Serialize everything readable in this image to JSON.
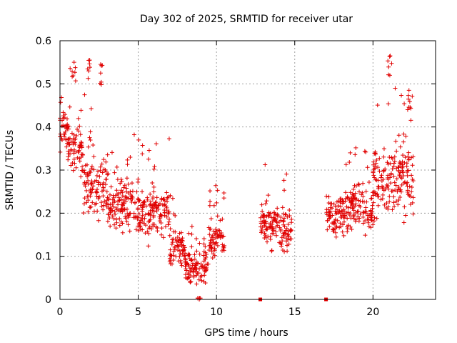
{
  "chart_data": {
    "type": "scatter",
    "title": "Day 302 of 2025, SRMTID for receiver utar",
    "xlabel": "GPS time / hours",
    "ylabel": "SRMTID / TECUs",
    "xlim": [
      0,
      24
    ],
    "ylim": [
      0,
      0.6
    ],
    "x_ticks": [
      0,
      5,
      10,
      15,
      20
    ],
    "x_tick_labels": [
      "0",
      "5",
      "10",
      "15",
      "20"
    ],
    "y_ticks": [
      0,
      0.1,
      0.2,
      0.3,
      0.4,
      0.5,
      0.6
    ],
    "y_tick_labels": [
      "0",
      "0.1",
      "0.2",
      "0.3",
      "0.4",
      "0.5",
      "0.6"
    ],
    "grid": true,
    "marker": "plus",
    "color": "#e00000",
    "series": [
      {
        "name": "SRMTID",
        "segments": [
          {
            "x_start": 0.0,
            "x_end": 0.5,
            "y_center": 0.4,
            "y_spread": 0.05
          },
          {
            "x_start": 0.5,
            "x_end": 1.5,
            "y_center": 0.35,
            "y_spread": 0.06
          },
          {
            "x_start": 1.5,
            "x_end": 3.0,
            "y_center": 0.26,
            "y_spread": 0.06
          },
          {
            "x_start": 3.0,
            "x_end": 5.0,
            "y_center": 0.22,
            "y_spread": 0.05
          },
          {
            "x_start": 5.0,
            "x_end": 7.0,
            "y_center": 0.2,
            "y_spread": 0.05
          },
          {
            "x_start": 7.0,
            "x_end": 8.0,
            "y_center": 0.12,
            "y_spread": 0.04
          },
          {
            "x_start": 8.0,
            "x_end": 9.5,
            "y_center": 0.07,
            "y_spread": 0.03
          },
          {
            "x_start": 9.5,
            "x_end": 10.5,
            "y_center": 0.14,
            "y_spread": 0.04
          },
          {
            "x_start": 12.8,
            "x_end": 14.0,
            "y_center": 0.18,
            "y_spread": 0.05
          },
          {
            "x_start": 14.0,
            "x_end": 14.8,
            "y_center": 0.16,
            "y_spread": 0.05
          },
          {
            "x_start": 17.0,
            "x_end": 18.5,
            "y_center": 0.2,
            "y_spread": 0.05
          },
          {
            "x_start": 18.5,
            "x_end": 20.0,
            "y_center": 0.22,
            "y_spread": 0.05
          },
          {
            "x_start": 20.0,
            "x_end": 21.0,
            "y_center": 0.27,
            "y_spread": 0.07
          },
          {
            "x_start": 21.0,
            "x_end": 22.6,
            "y_center": 0.29,
            "y_spread": 0.08
          }
        ],
        "peaks": [
          {
            "x": 0.9,
            "y": 0.55
          },
          {
            "x": 1.9,
            "y": 0.555
          },
          {
            "x": 2.6,
            "y": 0.545
          },
          {
            "x": 8.9,
            "y": 0.0
          },
          {
            "x": 21.1,
            "y": 0.565
          },
          {
            "x": 22.3,
            "y": 0.485
          }
        ],
        "zero_markers": [
          {
            "x": 12.8,
            "y": 0.0
          },
          {
            "x": 17.0,
            "y": 0.0
          }
        ]
      }
    ]
  }
}
